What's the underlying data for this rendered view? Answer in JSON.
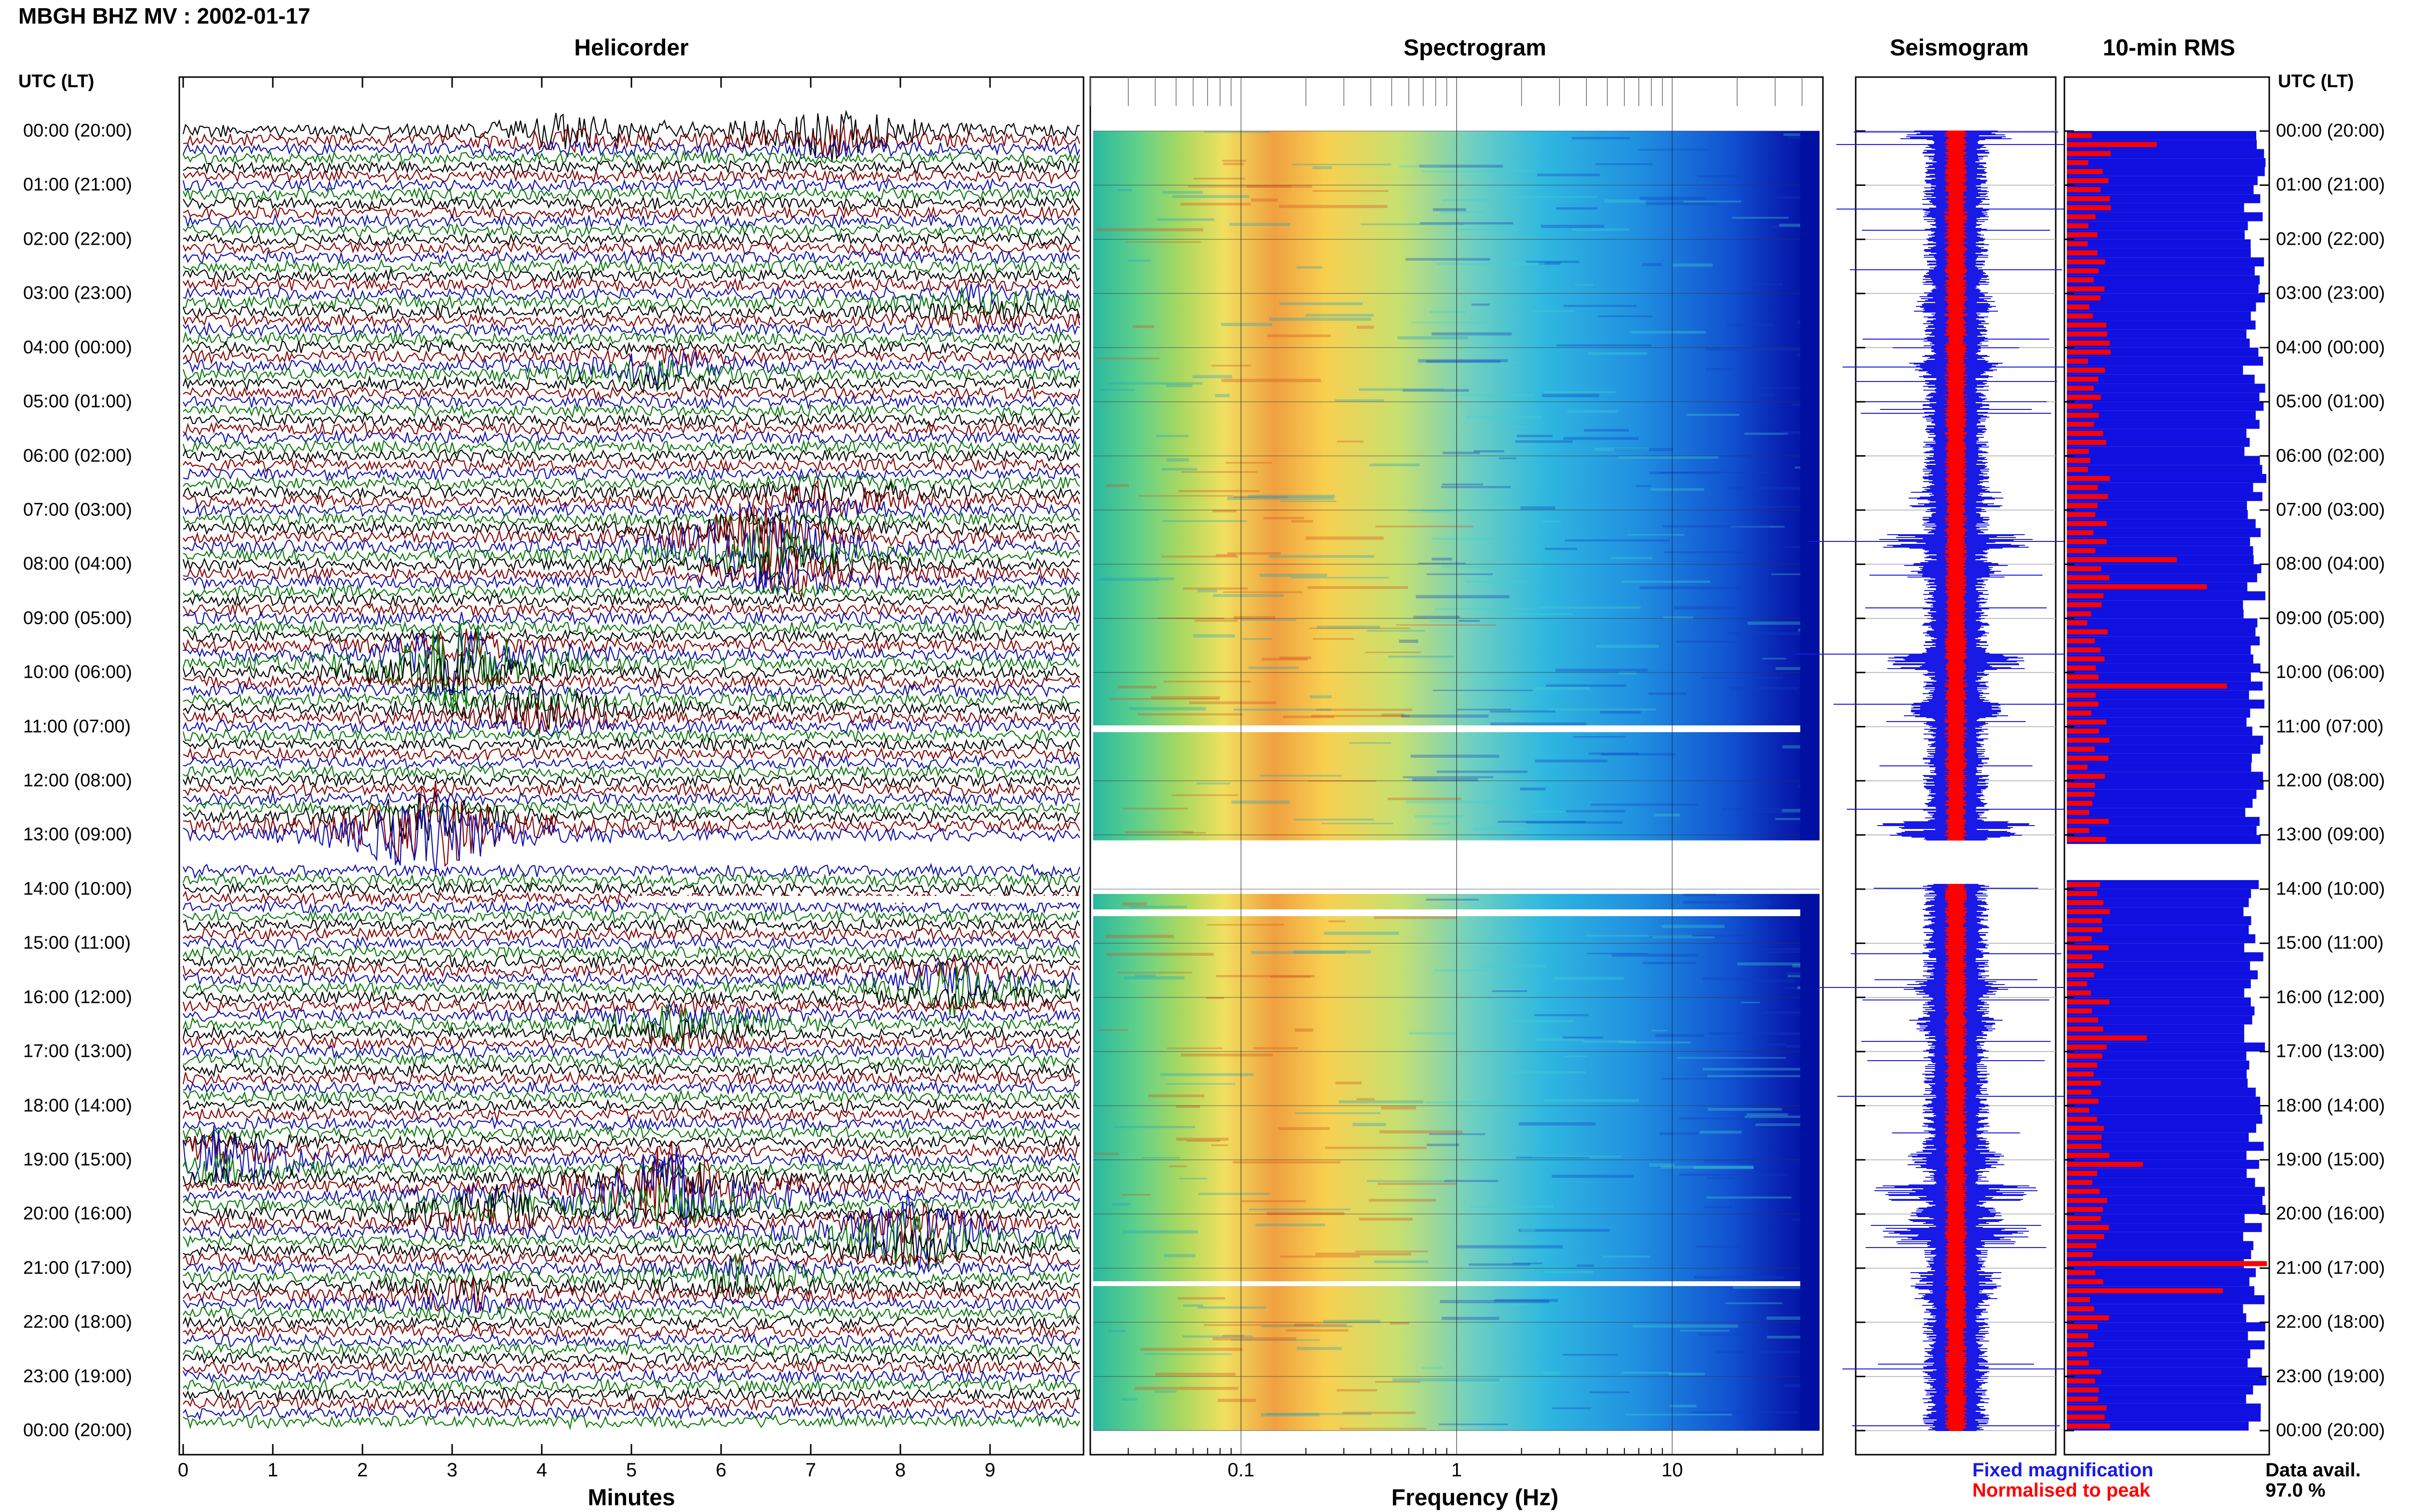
{
  "title": "MBGH BHZ MV : 2002-01-17",
  "panels": {
    "helicorder": "Helicorder",
    "spectrogram": "Spectrogram",
    "seismogram": "Seismogram",
    "rms": "10-min RMS"
  },
  "time_axis_label": "UTC (LT)",
  "time_axis_label_right": "UTC (LT)",
  "hour_labels": [
    "00:00 (20:00)",
    "01:00 (21:00)",
    "02:00 (22:00)",
    "03:00 (23:00)",
    "04:00 (00:00)",
    "05:00 (01:00)",
    "06:00 (02:00)",
    "07:00 (03:00)",
    "08:00 (04:00)",
    "09:00 (05:00)",
    "10:00 (06:00)",
    "11:00 (07:00)",
    "12:00 (08:00)",
    "13:00 (09:00)",
    "14:00 (10:00)",
    "15:00 (11:00)",
    "16:00 (12:00)",
    "17:00 (13:00)",
    "18:00 (14:00)",
    "19:00 (15:00)",
    "20:00 (16:00)",
    "21:00 (17:00)",
    "22:00 (18:00)",
    "23:00 (19:00)",
    "00:00 (20:00)"
  ],
  "helicorder_xaxis": {
    "label": "Minutes",
    "ticks": [
      "0",
      "1",
      "2",
      "3",
      "4",
      "5",
      "6",
      "7",
      "8",
      "9"
    ]
  },
  "spectrogram_xaxis": {
    "label": "Frequency (Hz)",
    "ticks": [
      "0.1",
      "1",
      "10"
    ]
  },
  "legend": {
    "fixed": "Fixed magnification",
    "normalised": "Normalised to peak",
    "fixed_color": "#1a1ae6",
    "normalised_color": "#ff0000"
  },
  "data_avail": {
    "label": "Data avail.",
    "value": "97.0 %"
  },
  "chart_data": {
    "type": "heatmap",
    "station": "MBGH",
    "channel": "BHZ",
    "network": "MV",
    "date": "2002-01-17",
    "trace_colors": [
      "#000000",
      "#8b0000",
      "#1010b0",
      "#0a7a0a"
    ],
    "helicorder_xlim": [
      0,
      10
    ],
    "spectrogram_xscale": "log",
    "spectrogram_xlim": [
      0.02,
      50
    ],
    "data_gap_hour": [
      13.1,
      13.6
    ],
    "events": [
      {
        "hour": 0.0,
        "minute": 7.2,
        "amp": 0.6
      },
      {
        "hour": 0.0,
        "minute": 4.3,
        "amp": 0.3
      },
      {
        "hour": 3.2,
        "minute": 8.9,
        "amp": 0.3
      },
      {
        "hour": 4.4,
        "minute": 5.3,
        "amp": 0.4
      },
      {
        "hour": 6.8,
        "minute": 7.2,
        "amp": 0.4
      },
      {
        "hour": 7.6,
        "minute": 6.4,
        "amp": 1.2
      },
      {
        "hour": 8.1,
        "minute": 6.8,
        "amp": 0.6
      },
      {
        "hour": 9.8,
        "minute": 3.0,
        "amp": 1.2
      },
      {
        "hour": 10.7,
        "minute": 4.0,
        "amp": 0.5
      },
      {
        "hour": 12.9,
        "minute": 2.7,
        "amp": 1.4
      },
      {
        "hour": 15.8,
        "minute": 8.6,
        "amp": 0.6
      },
      {
        "hour": 16.5,
        "minute": 5.6,
        "amp": 0.4
      },
      {
        "hour": 19.0,
        "minute": 0.4,
        "amp": 0.6
      },
      {
        "hour": 19.6,
        "minute": 5.4,
        "amp": 1.4
      },
      {
        "hour": 20.0,
        "minute": 3.4,
        "amp": 0.5
      },
      {
        "hour": 20.4,
        "minute": 8.1,
        "amp": 1.1
      },
      {
        "hour": 21.2,
        "minute": 6.2,
        "amp": 0.4
      },
      {
        "hour": 21.5,
        "minute": 3.1,
        "amp": 0.3
      }
    ],
    "rms_spikes": [
      {
        "hour": 0.2,
        "value": 0.45
      },
      {
        "hour": 7.8,
        "value": 0.55
      },
      {
        "hour": 8.3,
        "value": 0.7
      },
      {
        "hour": 10.2,
        "value": 0.8
      },
      {
        "hour": 16.7,
        "value": 0.4
      },
      {
        "hour": 19.0,
        "value": 0.38
      },
      {
        "hour": 20.8,
        "value": 1.0
      },
      {
        "hour": 21.4,
        "value": 0.78
      }
    ]
  }
}
